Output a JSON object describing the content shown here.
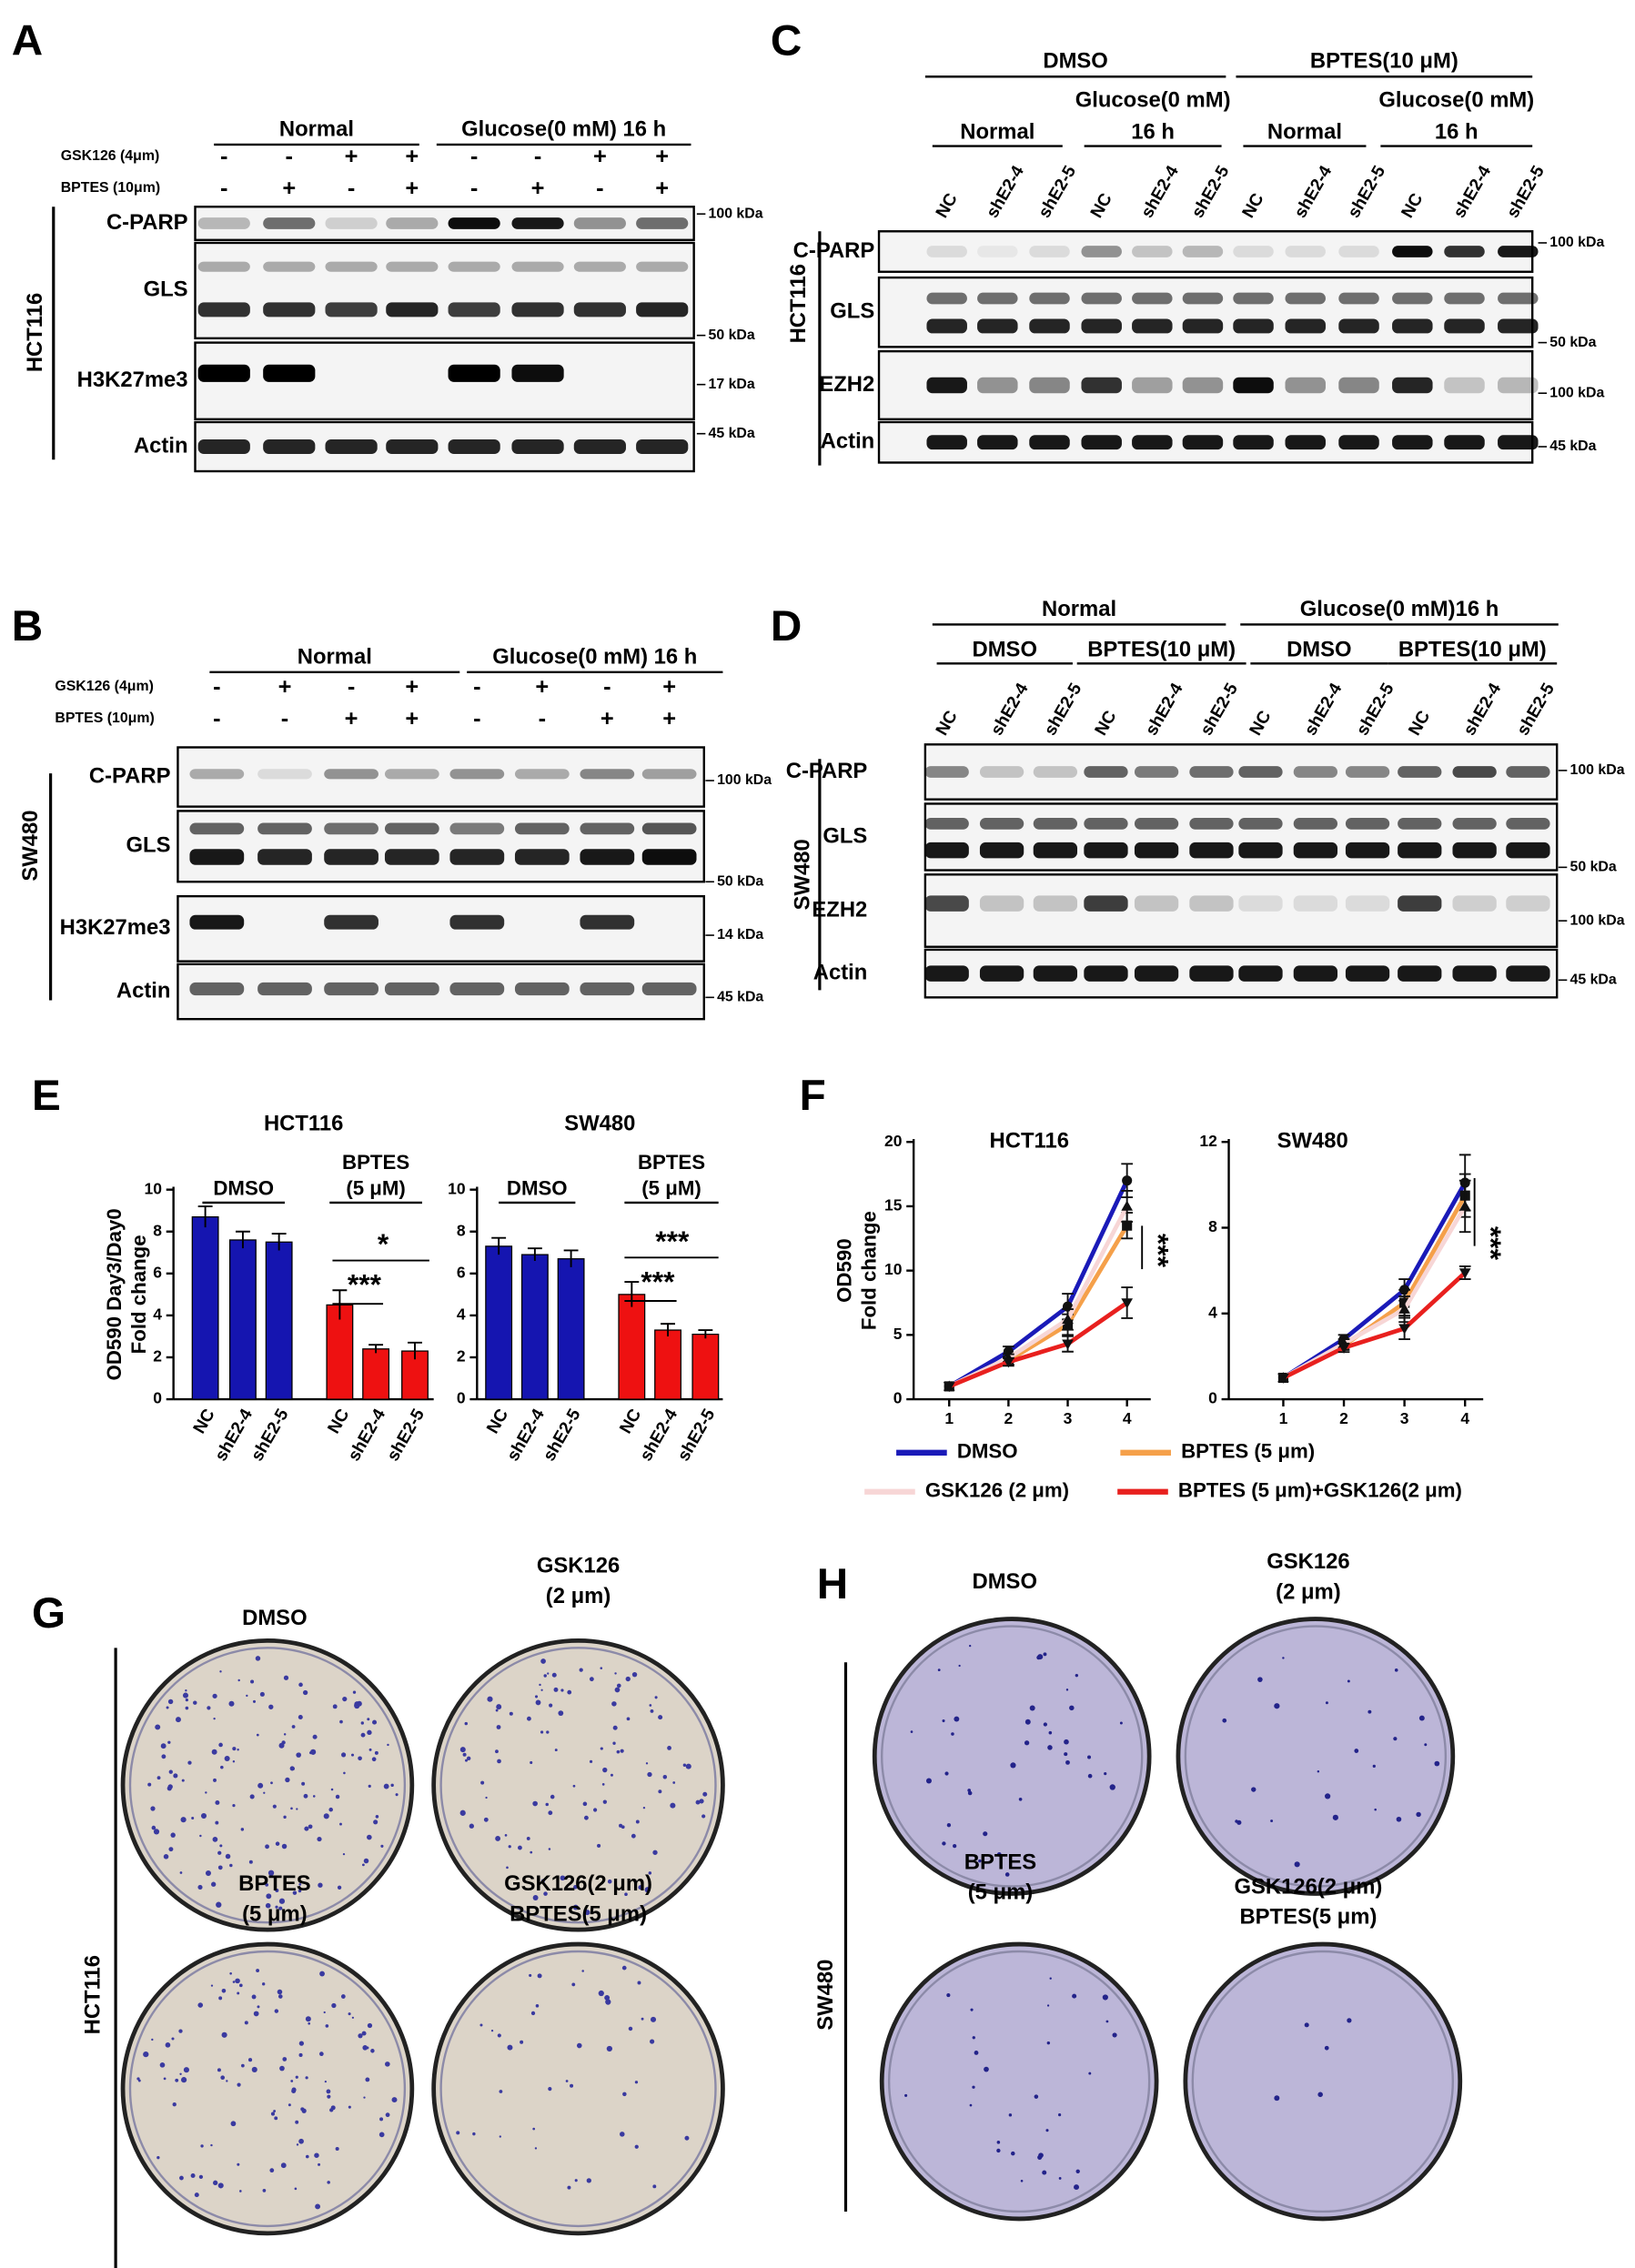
{
  "panels": {
    "A": {
      "letter": "A",
      "groups": [
        "Normal",
        "Glucose(0 mM) 16 h"
      ],
      "treatments": [
        {
          "name": "GSK126 (4μm)",
          "signs": [
            "-",
            "-",
            "+",
            "+",
            "-",
            "-",
            "+",
            "+"
          ]
        },
        {
          "name": "BPTES (10μm)",
          "signs": [
            "-",
            "+",
            "-",
            "+",
            "-",
            "+",
            "-",
            "+"
          ]
        }
      ],
      "cell_line": "HCT116",
      "rows": [
        {
          "name": "C-PARP",
          "size": "100 kDa"
        },
        {
          "name": "GLS",
          "size": "50 kDa"
        },
        {
          "name": "H3K27me3",
          "size": "17 kDa"
        },
        {
          "name": "Actin",
          "size": "45 kDa"
        }
      ]
    },
    "B": {
      "letter": "B",
      "groups": [
        "Normal",
        "Glucose(0 mM) 16 h"
      ],
      "treatments": [
        {
          "name": "GSK126 (4μm)",
          "signs": [
            "-",
            "+",
            "-",
            "+",
            "-",
            "+",
            "-",
            "+"
          ]
        },
        {
          "name": "BPTES (10μm)",
          "signs": [
            "-",
            "-",
            "+",
            "+",
            "-",
            "-",
            "+",
            "+"
          ]
        }
      ],
      "cell_line": "SW480",
      "rows": [
        {
          "name": "C-PARP",
          "size": "100 kDa"
        },
        {
          "name": "GLS",
          "size": "50 kDa"
        },
        {
          "name": "H3K27me3",
          "size": "14 kDa"
        },
        {
          "name": "Actin",
          "size": "45 kDa"
        }
      ]
    },
    "C": {
      "letter": "C",
      "groups": [
        "DMSO",
        "BPTES(10 μM)"
      ],
      "subgroups": [
        [
          "Normal"
        ],
        [
          "Glucose(0 mM)",
          "16 h"
        ],
        [
          "Normal"
        ],
        [
          "Glucose(0 mM)",
          "16 h"
        ]
      ],
      "lanes": [
        "NC",
        "shE2-4",
        "shE2-5",
        "NC",
        "shE2-4",
        "shE2-5",
        "NC",
        "shE2-4",
        "shE2-5",
        "NC",
        "shE2-4",
        "shE2-5"
      ],
      "cell_line": "HCT116",
      "rows": [
        {
          "name": "C-PARP",
          "size": "100 kDa"
        },
        {
          "name": "GLS",
          "size": "50 kDa"
        },
        {
          "name": "EZH2",
          "size": "100 kDa"
        },
        {
          "name": "Actin",
          "size": "45 kDa"
        }
      ]
    },
    "D": {
      "letter": "D",
      "groups": [
        "Normal",
        "Glucose(0 mM)16 h"
      ],
      "subgroups": [
        [
          "DMSO"
        ],
        [
          "BPTES(10 μM)"
        ],
        [
          "DMSO"
        ],
        [
          "BPTES(10 μM)"
        ]
      ],
      "lanes": [
        "NC",
        "shE2-4",
        "shE2-5",
        "NC",
        "shE2-4",
        "shE2-5",
        "NC",
        "shE2-4",
        "shE2-5",
        "NC",
        "shE2-4",
        "shE2-5"
      ],
      "cell_line": "SW480",
      "rows": [
        {
          "name": "C-PARP",
          "size": "100 kDa"
        },
        {
          "name": "GLS",
          "size": "50 kDa"
        },
        {
          "name": "EZH2",
          "size": "100 kDa"
        },
        {
          "name": "Actin",
          "size": "45 kDa"
        }
      ]
    },
    "E": {
      "letter": "E"
    },
    "F": {
      "letter": "F"
    },
    "G": {
      "letter": "G",
      "conditions": [
        [
          "DMSO"
        ],
        [
          "GSK126",
          "(2 μm)"
        ],
        [
          "BPTES",
          "(5 μm)"
        ],
        [
          "GSK126(2 μm)",
          "BPTES(5 μm)"
        ]
      ],
      "cell_line": "HCT116"
    },
    "H": {
      "letter": "H",
      "conditions": [
        [
          "DMSO"
        ],
        [
          "GSK126",
          "(2 μm)"
        ],
        [
          "BPTES",
          "(5 μm)"
        ],
        [
          "GSK126(2 μm)",
          "BPTES(5 μm)"
        ]
      ],
      "cell_line": "SW480"
    }
  },
  "chart_data": [
    {
      "type": "bar",
      "title": "HCT116",
      "y_label": [
        "OD590 Day3/Day0",
        "Fold change"
      ],
      "categories": [
        "NC",
        "shE2-4",
        "shE2-5",
        "NC",
        "shE2-4",
        "shE2-5"
      ],
      "values": [
        8.7,
        7.6,
        7.5,
        4.5,
        2.4,
        2.3
      ],
      "errors": [
        0.5,
        0.4,
        0.4,
        0.7,
        0.2,
        0.4
      ],
      "colors": [
        "#1515b0",
        "#1515b0",
        "#1515b0",
        "#ee1111",
        "#ee1111",
        "#ee1111"
      ],
      "groups": [
        [
          "DMSO"
        ],
        [
          "BPTES",
          "(5 μM)"
        ]
      ],
      "annotations": [
        "*",
        "***"
      ],
      "ylim": [
        0,
        10
      ],
      "yticks": [
        0,
        2,
        4,
        6,
        8,
        10
      ]
    },
    {
      "type": "bar",
      "title": "SW480",
      "categories": [
        "NC",
        "shE2-4",
        "shE2-5",
        "NC",
        "shE2-4",
        "shE2-5"
      ],
      "values": [
        7.3,
        6.9,
        6.7,
        5.0,
        3.3,
        3.1
      ],
      "errors": [
        0.4,
        0.3,
        0.4,
        0.6,
        0.3,
        0.2
      ],
      "colors": [
        "#1515b0",
        "#1515b0",
        "#1515b0",
        "#ee1111",
        "#ee1111",
        "#ee1111"
      ],
      "groups": [
        [
          "DMSO"
        ],
        [
          "BPTES",
          "(5 μM)"
        ]
      ],
      "annotations": [
        "***",
        "***"
      ],
      "ylim": [
        0,
        10
      ],
      "yticks": [
        0,
        2,
        4,
        6,
        8,
        10
      ]
    },
    {
      "type": "line",
      "title": "HCT116",
      "y_label": [
        "OD590",
        "Fold change"
      ],
      "x": [
        1,
        2,
        3,
        4
      ],
      "xlim": [
        0.4,
        4.4
      ],
      "xticks": [
        1,
        2,
        3,
        4
      ],
      "ylim": [
        0,
        20
      ],
      "yticks": [
        0,
        5,
        10,
        15,
        20
      ],
      "series": [
        {
          "name": "DMSO",
          "color": "#1a1ab8",
          "values": [
            1,
            3.7,
            7.2,
            17
          ],
          "errors": [
            0,
            0.4,
            1.0,
            1.3
          ]
        },
        {
          "name": "BPTES (5 μm)",
          "color": "#f5a04a",
          "values": [
            1,
            3.0,
            5.8,
            13.5
          ],
          "errors": [
            0,
            0.3,
            0.8,
            1.0
          ]
        },
        {
          "name": "GSK126 (2 μm)",
          "color": "#f7d6d6",
          "values": [
            1,
            3.2,
            6.2,
            15
          ],
          "errors": [
            0,
            0.3,
            0.8,
            1.2
          ]
        },
        {
          "name": "BPTES (5 μm)+GSK126(2 μm)",
          "color": "#e8201e",
          "values": [
            1,
            2.9,
            4.3,
            7.5
          ],
          "errors": [
            0,
            0.3,
            0.6,
            1.2
          ]
        }
      ],
      "annotations": [
        "***"
      ]
    },
    {
      "type": "line",
      "title": "SW480",
      "x": [
        1,
        2,
        3,
        4
      ],
      "xlim": [
        0.1,
        4.3
      ],
      "xticks": [
        1,
        2,
        3,
        4
      ],
      "ylim": [
        0,
        12
      ],
      "yticks": [
        0,
        4,
        8,
        12
      ],
      "series": [
        {
          "color": "#1a1ab8",
          "values": [
            1,
            2.8,
            5.1,
            10.1
          ],
          "errors": [
            0,
            0.2,
            0.5,
            1.3
          ]
        },
        {
          "color": "#f5a04a",
          "values": [
            1,
            2.5,
            4.5,
            9.5
          ],
          "errors": [
            0,
            0.2,
            0.6,
            1.0
          ]
        },
        {
          "color": "#f7d6d6",
          "values": [
            1,
            2.6,
            4.2,
            9.0
          ],
          "errors": [
            0,
            0.2,
            0.6,
            1.2
          ]
        },
        {
          "color": "#e8201e",
          "values": [
            1,
            2.4,
            3.3,
            5.9
          ],
          "errors": [
            0,
            0.2,
            0.5,
            0.3
          ]
        }
      ],
      "annotations": [
        "***"
      ]
    }
  ]
}
